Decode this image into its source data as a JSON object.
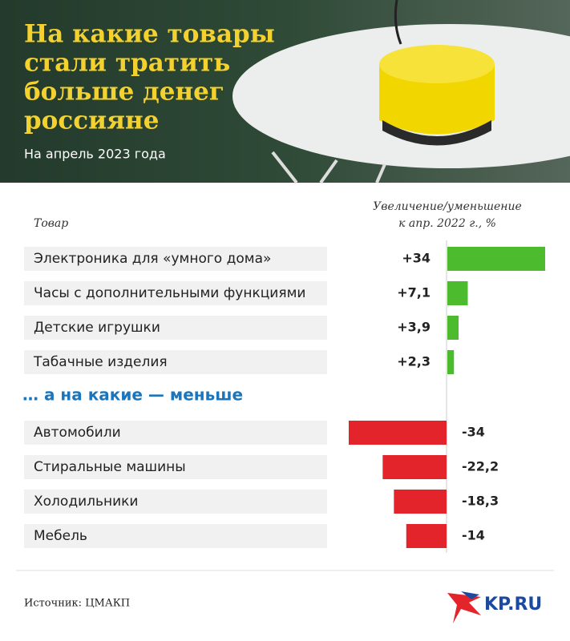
{
  "chart_data": {
    "type": "bar",
    "title": [
      "На какие товары",
      "стали тратить",
      "больше денег",
      "россияне"
    ],
    "subtitle": "На апрель 2023 года",
    "category_header": "Товар",
    "value_header": [
      "Увеличение/уменьшение",
      "к апр. 2022 г., %"
    ],
    "section_label": "… а на какие — меньше",
    "categories": [
      "Электроника для «умного дома»",
      "Часы с дополнительными функциями",
      "Детские игрушки",
      "Табачные изделия",
      "Автомобили",
      "Стиральные машины",
      "Холодильники",
      "Мебель"
    ],
    "values": [
      34,
      7.1,
      3.9,
      2.3,
      -34,
      -22.2,
      -18.3,
      -14
    ],
    "value_labels": [
      "+34",
      "+7,1",
      "+3,9",
      "+2,3",
      "-34",
      "-22,2",
      "-18,3",
      "-14"
    ],
    "colors": [
      "#4cbc2e",
      "#4cbc2e",
      "#4cbc2e",
      "#4cbc2e",
      "#e3242b",
      "#e3242b",
      "#e3242b",
      "#e3242b"
    ],
    "source": "Источник: ЦМАКП",
    "logo": "KP.RU"
  }
}
